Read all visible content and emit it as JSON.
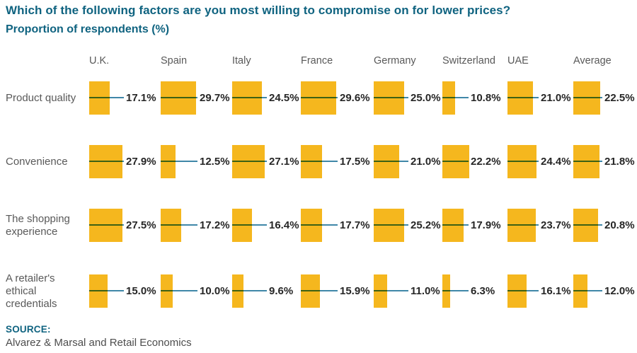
{
  "header": {
    "title": "Which of the following factors are you most willing to compromise on for lower prices?",
    "subtitle": "Proportion of respondents (%)"
  },
  "chart_data": {
    "type": "bar",
    "variant": "pictogram: fixed-height blocks, width proportional to value, leader line to data label",
    "unit": "%",
    "value_range": [
      0,
      30
    ],
    "grid": false,
    "legend": false,
    "categories": [
      "U.K.",
      "Spain",
      "Italy",
      "France",
      "Germany",
      "Switzerland",
      "UAE",
      "Average"
    ],
    "rows": [
      {
        "label": "Product quality",
        "values": [
          17.1,
          29.7,
          24.5,
          29.6,
          25.0,
          10.8,
          21.0,
          22.5
        ]
      },
      {
        "label": "Convenience",
        "values": [
          27.9,
          12.5,
          27.1,
          17.5,
          21.0,
          22.2,
          24.4,
          21.8
        ]
      },
      {
        "label": "The shopping experience",
        "values": [
          27.5,
          17.2,
          16.4,
          17.7,
          25.2,
          17.9,
          23.7,
          20.8
        ]
      },
      {
        "label": "A retailer's ethical credentials",
        "values": [
          15.0,
          10.0,
          9.6,
          15.9,
          11.0,
          6.3,
          16.1,
          12.0
        ]
      }
    ],
    "colors": {
      "bar": "#f5b71e",
      "line": "#3f87a8",
      "title": "#0f6380",
      "muted_text": "#595959",
      "value_text": "#262626"
    },
    "value_format": "one decimal place + %"
  },
  "footer": {
    "source_label": "SOURCE:",
    "source_text": "Alvarez & Marsal and Retail Economics"
  }
}
